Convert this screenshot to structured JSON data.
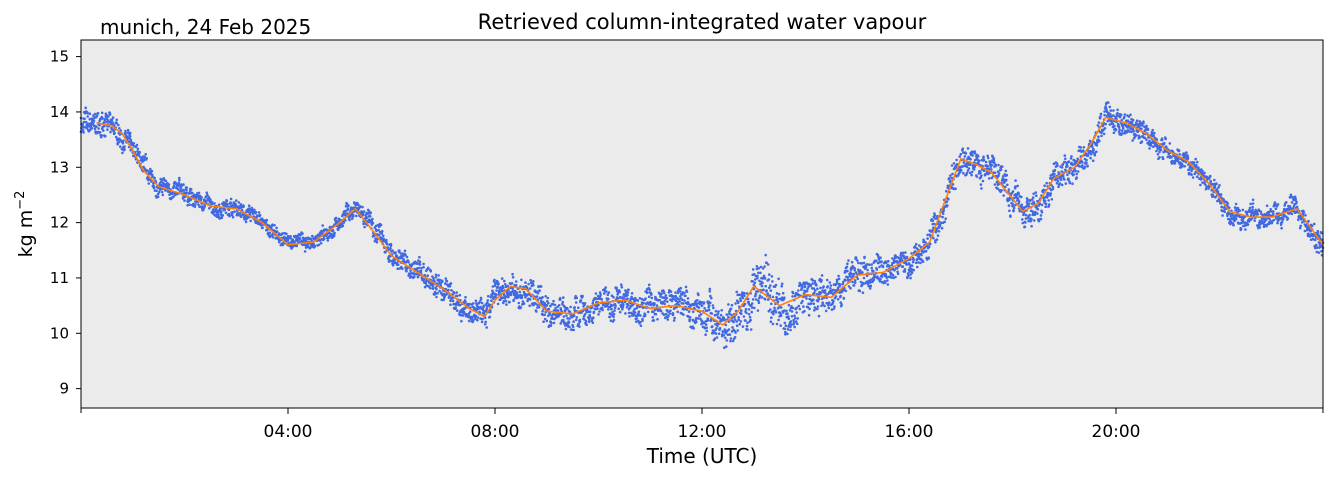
{
  "chart_data": {
    "type": "scatter",
    "title": "Retrieved column-integrated water vapour",
    "location_date": "munich, 24 Feb 2025",
    "xlabel": "Time (UTC)",
    "ylabel": "kg m",
    "ylabel_exponent": "−2",
    "xlim_hours": [
      0,
      24
    ],
    "ylim": [
      8.65,
      15.3
    ],
    "x_ticks": [
      {
        "hour": 4,
        "label": "04:00"
      },
      {
        "hour": 8,
        "label": "08:00"
      },
      {
        "hour": 12,
        "label": "12:00"
      },
      {
        "hour": 16,
        "label": "16:00"
      },
      {
        "hour": 20,
        "label": "20:00"
      }
    ],
    "y_ticks": [
      9,
      10,
      11,
      12,
      13,
      14,
      15
    ],
    "grid": false,
    "background_color": "#ebebeb",
    "series": [
      {
        "role": "raw retrievals",
        "color": "#4169e1",
        "marker": "dot",
        "spread_halfwidth": [
          [
            0,
            0.28
          ],
          [
            1.5,
            0.22
          ],
          [
            4,
            0.15
          ],
          [
            6,
            0.22
          ],
          [
            8,
            0.3
          ],
          [
            10,
            0.3
          ],
          [
            12,
            0.35
          ],
          [
            13.2,
            0.6
          ],
          [
            14.5,
            0.35
          ],
          [
            16,
            0.3
          ],
          [
            17,
            0.35
          ],
          [
            19.7,
            0.3
          ],
          [
            21,
            0.2
          ],
          [
            24,
            0.25
          ]
        ]
      },
      {
        "role": "smoothed",
        "color": "#ff7f0e",
        "x_hours": [
          0.3,
          0.6,
          0.8,
          1.0,
          1.2,
          1.5,
          2.0,
          2.5,
          3.0,
          3.5,
          4.0,
          4.5,
          5.0,
          5.3,
          5.6,
          6.0,
          6.5,
          7.0,
          7.5,
          7.8,
          8.0,
          8.3,
          8.6,
          9.0,
          9.5,
          10.0,
          10.5,
          11.0,
          11.5,
          12.0,
          12.4,
          12.7,
          13.0,
          13.5,
          14.0,
          14.5,
          15.0,
          15.5,
          16.0,
          16.4,
          16.7,
          17.0,
          17.3,
          17.6,
          17.9,
          18.2,
          18.5,
          18.8,
          19.2,
          19.5,
          19.8,
          20.2,
          20.6,
          21.0,
          21.4,
          21.8,
          22.2,
          22.6,
          23.0,
          23.5,
          24.0
        ],
        "values": [
          13.8,
          13.75,
          13.6,
          13.3,
          12.95,
          12.65,
          12.5,
          12.3,
          12.25,
          12.0,
          11.6,
          11.65,
          12.0,
          12.25,
          11.9,
          11.4,
          11.1,
          10.8,
          10.45,
          10.3,
          10.6,
          10.85,
          10.8,
          10.4,
          10.35,
          10.55,
          10.6,
          10.45,
          10.5,
          10.4,
          10.15,
          10.4,
          10.85,
          10.5,
          10.7,
          10.65,
          11.05,
          11.1,
          11.35,
          11.65,
          12.4,
          13.15,
          13.05,
          12.9,
          12.55,
          12.2,
          12.35,
          12.8,
          13.0,
          13.4,
          13.9,
          13.8,
          13.6,
          13.3,
          13.1,
          12.7,
          12.2,
          12.1,
          12.1,
          12.25,
          11.6
        ]
      }
    ]
  }
}
